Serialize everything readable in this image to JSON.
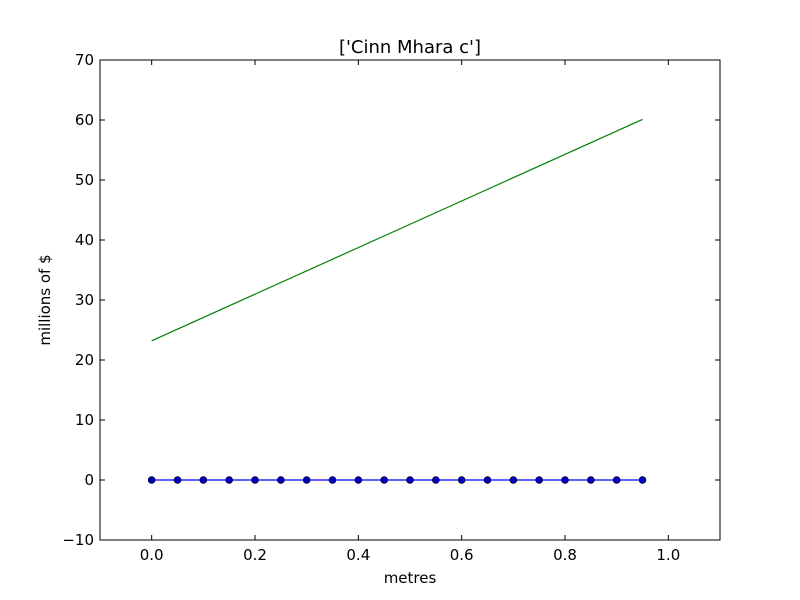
{
  "chart_data": {
    "type": "line",
    "title": "['Cinn Mhara c']",
    "xlabel": "metres",
    "ylabel": "millions of $",
    "xlim": [
      -0.1,
      1.1
    ],
    "ylim": [
      -10,
      70
    ],
    "x_ticks": [
      0.0,
      0.2,
      0.4,
      0.6,
      0.8,
      1.0
    ],
    "x_tick_labels": [
      "0.0",
      "0.2",
      "0.4",
      "0.6",
      "0.8",
      "1.0"
    ],
    "y_ticks": [
      -10,
      0,
      10,
      20,
      30,
      40,
      50,
      60,
      70
    ],
    "y_tick_labels": [
      "−10",
      "0",
      "10",
      "20",
      "30",
      "40",
      "50",
      "60",
      "70"
    ],
    "grid": false,
    "legend": null,
    "series": [
      {
        "color": "#0000ff",
        "marker": "circle",
        "x": [
          0.0,
          0.05,
          0.1,
          0.15,
          0.2,
          0.25,
          0.3,
          0.35,
          0.4,
          0.45,
          0.5,
          0.55,
          0.6,
          0.65,
          0.7,
          0.75,
          0.8,
          0.85,
          0.9,
          0.95
        ],
        "y": [
          0,
          0,
          0,
          0,
          0,
          0,
          0,
          0,
          0,
          0,
          0,
          0,
          0,
          0,
          0,
          0,
          0,
          0,
          0,
          0
        ]
      },
      {
        "color": "#008000",
        "marker": "none",
        "x": [
          0.0,
          0.95
        ],
        "y": [
          23.2,
          60.1
        ]
      }
    ]
  }
}
